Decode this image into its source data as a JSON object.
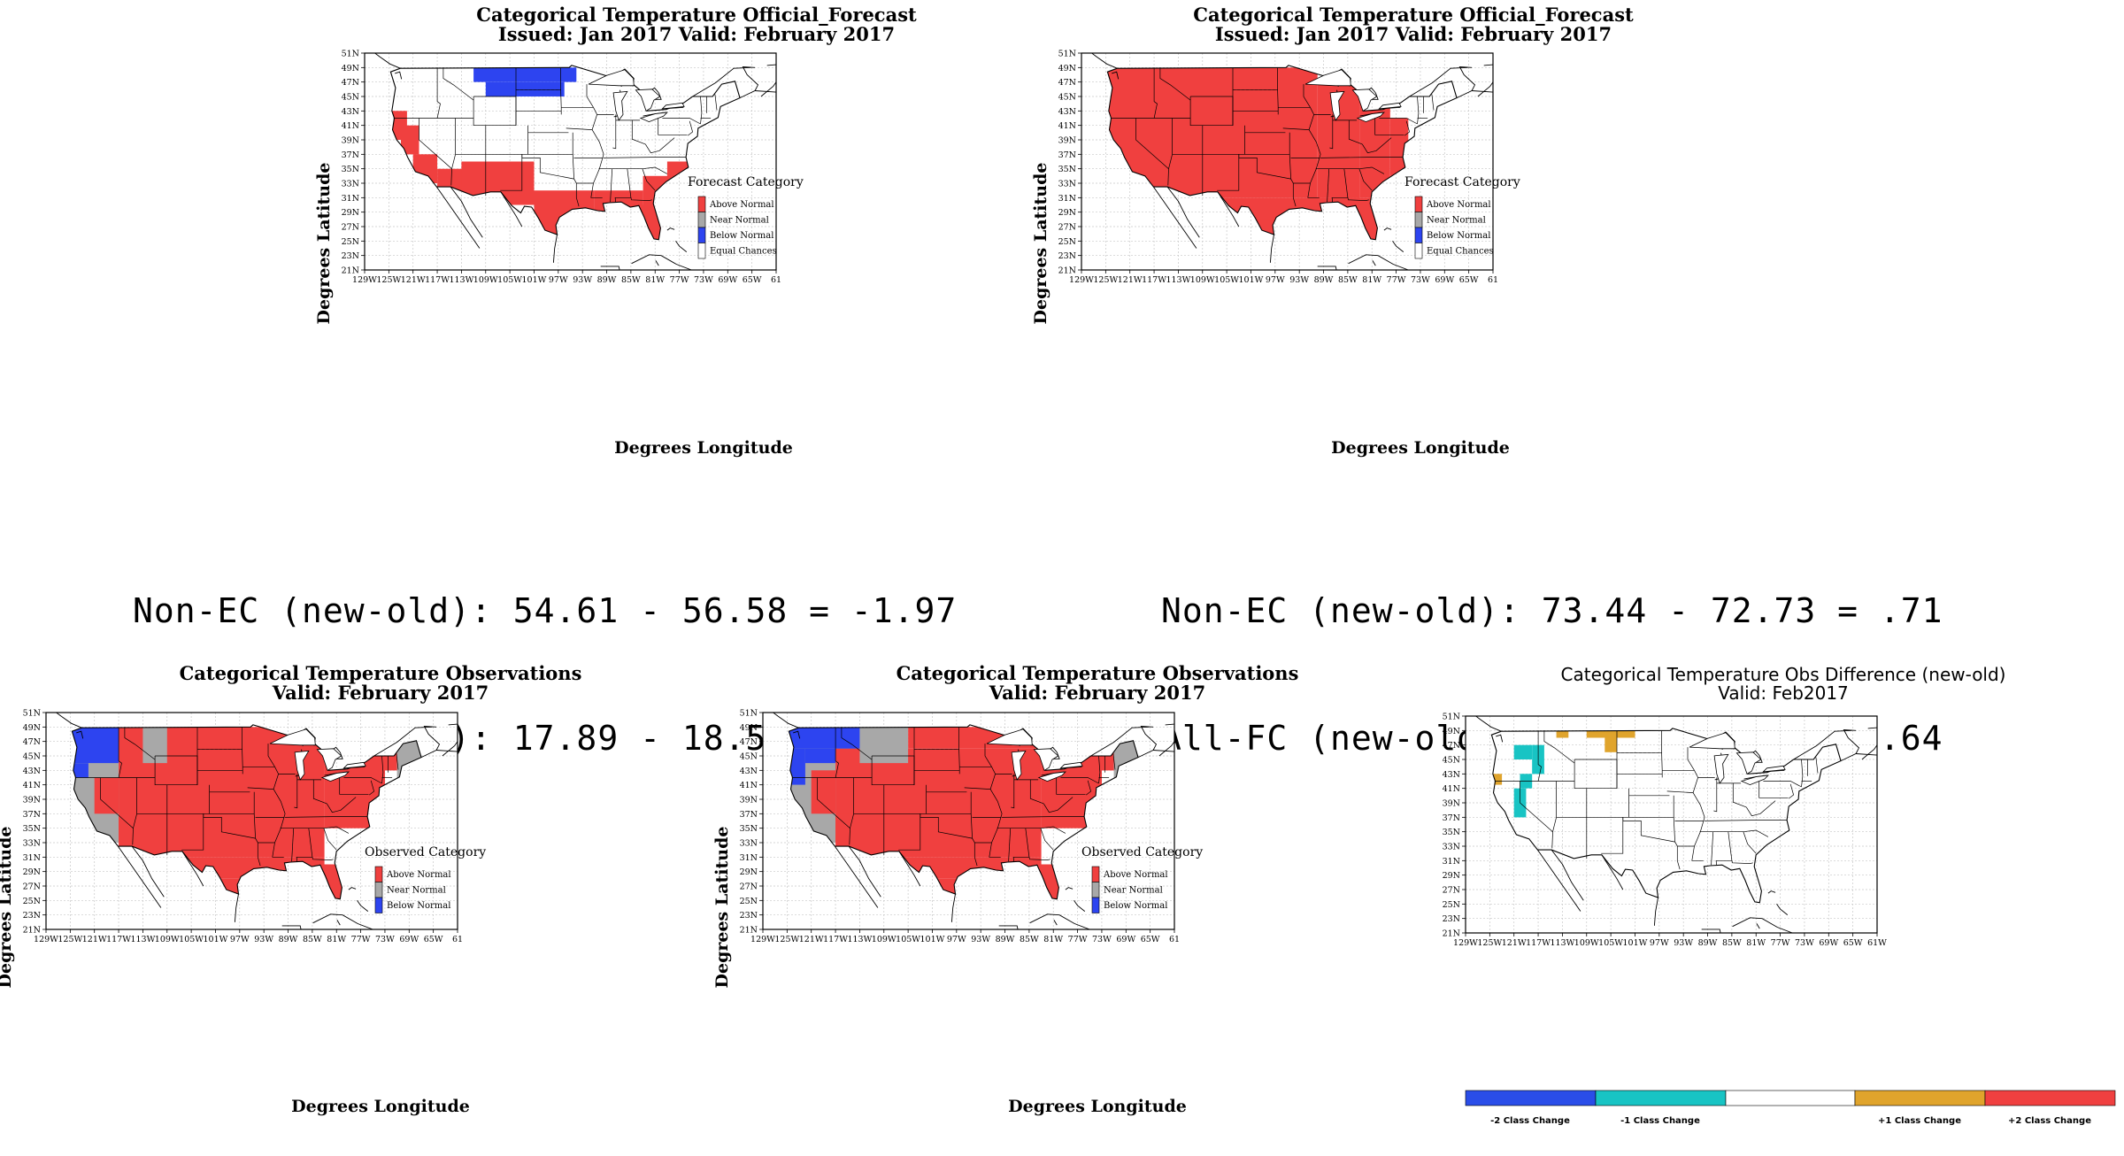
{
  "colors": {
    "above_normal": "#f0403f",
    "near_normal": "#a8a8a8",
    "below_normal": "#2d44f0",
    "equal_chances": "#ffffff",
    "class_change_minus2": "#2a4de8",
    "class_change_minus1": "#18c4c4",
    "class_change_zero": "#ffffff",
    "class_change_plus1": "#e0a42c",
    "class_change_plus2": "#f04040",
    "map_lines": "#000000",
    "grid": "#c8c8c8"
  },
  "axes": {
    "lat_ticks": [
      "51N",
      "49N",
      "47N",
      "45N",
      "43N",
      "41N",
      "39N",
      "37N",
      "35N",
      "33N",
      "31N",
      "29N",
      "27N",
      "25N",
      "23N",
      "21N"
    ],
    "lon_ticks": [
      "129W",
      "125W",
      "121W",
      "117W",
      "113W",
      "109W",
      "105W",
      "101W",
      "97W",
      "93W",
      "89W",
      "85W",
      "81W",
      "77W",
      "73W",
      "69W",
      "65W",
      "61"
    ],
    "lon_ticks_diff": [
      "129W",
      "125W",
      "121W",
      "117W",
      "113W",
      "109W",
      "105W",
      "101W",
      "97W",
      "93W",
      "89W",
      "85W",
      "81W",
      "77W",
      "73W",
      "69W",
      "65W",
      "61W"
    ],
    "ylabel": "Degrees Latitude",
    "xlabel": "Degrees Longitude"
  },
  "forecast_legend": {
    "title": "Forecast Category",
    "items": [
      "Above Normal",
      "Near Normal",
      "Below Normal",
      "Equal Chances"
    ]
  },
  "observed_legend": {
    "title": "Observed Category",
    "items": [
      "Above Normal",
      "Near Normal",
      "Below Normal"
    ]
  },
  "panels": {
    "forecast_old": {
      "title1": "Categorical Temperature Official_Forecast",
      "title2": "Issued: Jan 2017 Valid: February 2017"
    },
    "forecast_new": {
      "title1": "Categorical Temperature Official_Forecast",
      "title2": "Issued: Jan 2017 Valid: February 2017"
    },
    "obs_old": {
      "title1": "Categorical Temperature Observations",
      "title2": "Valid: February 2017"
    },
    "obs_new": {
      "title1": "Categorical Temperature Observations",
      "title2": "Valid: February 2017"
    },
    "obs_diff": {
      "title1": "Categorical Temperature Obs Difference (new-old)",
      "title2": "Valid: Feb2017",
      "colorbar_labels": [
        "-2 Class Change",
        "-1 Class Change",
        "+1 Class Change",
        "+2 Class Change"
      ]
    }
  },
  "stats": {
    "left_line1": "Non-EC (new-old): 54.61 - 56.58 = -1.97",
    "left_line2": "All-FC (new-old): 17.89 - 18.53 = -.64",
    "right_line1": "Non-EC (new-old): 73.44 - 72.73 = .71",
    "right_line2": "All-FC (new-old): 66.16 - 65.52 = .64"
  }
}
